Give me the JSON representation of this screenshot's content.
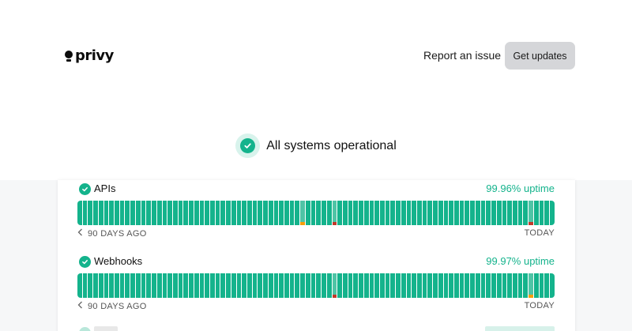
{
  "brand": {
    "name": "privy"
  },
  "nav": {
    "report_label": "Report an issue",
    "updates_label": "Get updates"
  },
  "status": {
    "text": "All systems operational"
  },
  "colors": {
    "operational": "#14b38c",
    "warning": "#f59e0b",
    "outage": "#c0392b"
  },
  "components": [
    {
      "name": "APIs",
      "uptime": "99.96% uptime",
      "from_label": "90 DAYS AGO",
      "to_label": "TODAY",
      "days": 90,
      "events": [
        {
          "day": 42,
          "kind": "warn"
        },
        {
          "day": 48,
          "kind": "down"
        },
        {
          "day": 85,
          "kind": "down"
        }
      ]
    },
    {
      "name": "Webhooks",
      "uptime": "99.97% uptime",
      "from_label": "90 DAYS AGO",
      "to_label": "TODAY",
      "days": 90,
      "events": [
        {
          "day": 48,
          "kind": "down"
        },
        {
          "day": 85,
          "kind": "warn"
        }
      ]
    }
  ]
}
